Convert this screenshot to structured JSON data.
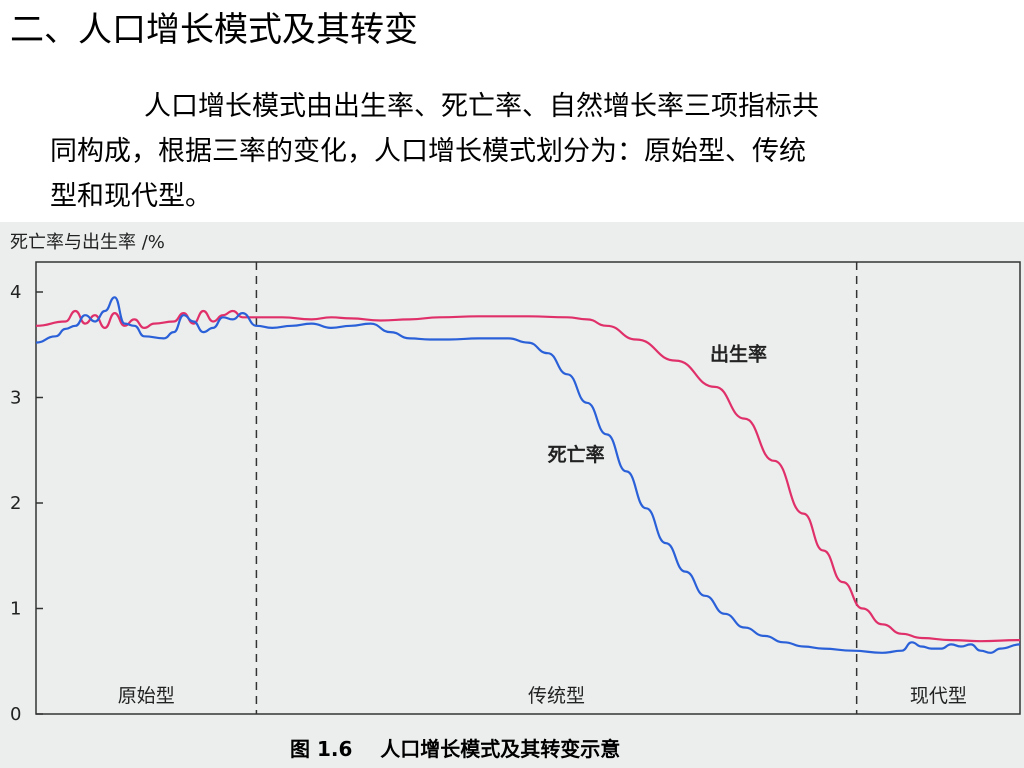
{
  "slide": {
    "title": "二、人口增长模式及其转变",
    "paragraph_line1": "人口增长模式由出生率、死亡率、自然增长率三项指标共",
    "paragraph_line2": "同构成，根据三率的变化，人口增长模式划分为：原始型、传统",
    "paragraph_line3": "型和现代型。"
  },
  "chart_data": {
    "type": "line",
    "ylabel": "死亡率与出生率 /%",
    "yticks": [
      0,
      1,
      2,
      3,
      4
    ],
    "ylim": [
      0,
      4.2
    ],
    "xlim": [
      0,
      100
    ],
    "caption": "图 1.6    人口增长模式及其转变示意",
    "stages": [
      {
        "name": "原始型",
        "x_start": 0,
        "x_end": 22.4
      },
      {
        "name": "传统型",
        "x_start": 22.4,
        "x_end": 83.4
      },
      {
        "name": "现代型",
        "x_start": 83.4,
        "x_end": 100
      }
    ],
    "grid": false,
    "series": [
      {
        "name": "出生率",
        "color": "#e0306a",
        "points": [
          [
            0,
            3.68
          ],
          [
            3,
            3.72
          ],
          [
            4,
            3.82
          ],
          [
            5,
            3.7
          ],
          [
            6,
            3.78
          ],
          [
            7,
            3.66
          ],
          [
            8,
            3.8
          ],
          [
            9,
            3.68
          ],
          [
            10,
            3.74
          ],
          [
            11,
            3.66
          ],
          [
            12,
            3.7
          ],
          [
            14,
            3.72
          ],
          [
            15,
            3.8
          ],
          [
            16,
            3.7
          ],
          [
            17,
            3.82
          ],
          [
            18,
            3.72
          ],
          [
            19,
            3.78
          ],
          [
            20,
            3.82
          ],
          [
            21,
            3.76
          ],
          [
            22.4,
            3.76
          ],
          [
            25,
            3.76
          ],
          [
            28,
            3.74
          ],
          [
            30,
            3.76
          ],
          [
            32,
            3.75
          ],
          [
            35,
            3.73
          ],
          [
            38,
            3.74
          ],
          [
            41,
            3.76
          ],
          [
            45,
            3.77
          ],
          [
            50,
            3.77
          ],
          [
            54,
            3.76
          ],
          [
            56,
            3.74
          ],
          [
            58,
            3.68
          ],
          [
            61,
            3.55
          ],
          [
            65,
            3.35
          ],
          [
            69,
            3.1
          ],
          [
            72,
            2.8
          ],
          [
            75,
            2.4
          ],
          [
            78,
            1.9
          ],
          [
            80,
            1.55
          ],
          [
            82,
            1.25
          ],
          [
            84,
            1.0
          ],
          [
            86,
            0.85
          ],
          [
            88,
            0.76
          ],
          [
            90,
            0.72
          ],
          [
            93,
            0.7
          ],
          [
            96,
            0.69
          ],
          [
            100,
            0.7
          ]
        ]
      },
      {
        "name": "死亡率",
        "color": "#2a60d8",
        "points": [
          [
            0,
            3.52
          ],
          [
            2,
            3.58
          ],
          [
            3,
            3.65
          ],
          [
            4,
            3.68
          ],
          [
            5,
            3.78
          ],
          [
            6,
            3.72
          ],
          [
            7,
            3.82
          ],
          [
            8,
            3.95
          ],
          [
            9,
            3.7
          ],
          [
            10,
            3.68
          ],
          [
            11,
            3.58
          ],
          [
            13,
            3.56
          ],
          [
            14,
            3.62
          ],
          [
            15,
            3.78
          ],
          [
            16,
            3.72
          ],
          [
            17,
            3.62
          ],
          [
            18,
            3.66
          ],
          [
            19,
            3.76
          ],
          [
            20,
            3.74
          ],
          [
            21,
            3.8
          ],
          [
            22.4,
            3.68
          ],
          [
            24,
            3.66
          ],
          [
            26,
            3.68
          ],
          [
            28,
            3.7
          ],
          [
            30,
            3.66
          ],
          [
            32,
            3.68
          ],
          [
            34,
            3.7
          ],
          [
            36,
            3.62
          ],
          [
            38,
            3.56
          ],
          [
            40,
            3.55
          ],
          [
            42,
            3.55
          ],
          [
            45,
            3.56
          ],
          [
            48,
            3.56
          ],
          [
            50,
            3.52
          ],
          [
            52,
            3.42
          ],
          [
            54,
            3.22
          ],
          [
            56,
            2.95
          ],
          [
            58,
            2.65
          ],
          [
            60,
            2.3
          ],
          [
            62,
            1.95
          ],
          [
            64,
            1.62
          ],
          [
            66,
            1.35
          ],
          [
            68,
            1.12
          ],
          [
            70,
            0.95
          ],
          [
            72,
            0.82
          ],
          [
            74,
            0.74
          ],
          [
            76,
            0.68
          ],
          [
            78,
            0.64
          ],
          [
            80,
            0.62
          ],
          [
            83,
            0.6
          ],
          [
            86,
            0.58
          ],
          [
            88,
            0.6
          ],
          [
            89,
            0.68
          ],
          [
            90,
            0.64
          ],
          [
            91,
            0.62
          ],
          [
            92,
            0.62
          ],
          [
            93,
            0.66
          ],
          [
            94,
            0.64
          ],
          [
            95,
            0.66
          ],
          [
            96,
            0.6
          ],
          [
            97,
            0.58
          ],
          [
            98,
            0.62
          ],
          [
            100,
            0.66
          ]
        ]
      }
    ],
    "annotations": [
      {
        "text": "出生率",
        "series": "出生率",
        "x": 68.5,
        "y": 3.35
      },
      {
        "text": "死亡率",
        "series": "死亡率",
        "x": 52,
        "y": 2.4
      }
    ]
  }
}
